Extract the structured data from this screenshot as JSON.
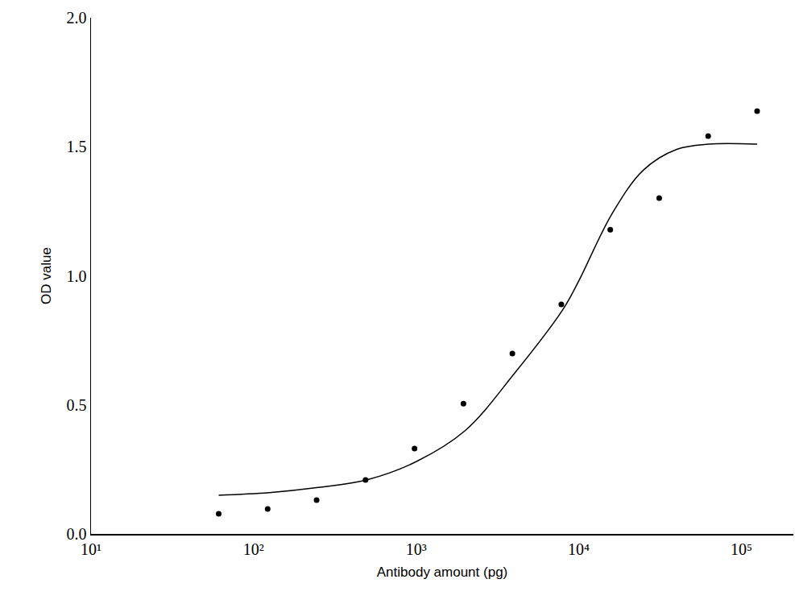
{
  "chart_data": {
    "type": "scatter",
    "x_label": "Antibody amount (pg)",
    "y_label": "OD value",
    "log": "x",
    "grid": false,
    "xlim": [
      10,
      209000
    ],
    "xticks": [
      {
        "value": 10,
        "label": "10¹"
      },
      {
        "value": 100,
        "label": "10²"
      },
      {
        "value": 1000,
        "label": "10³"
      },
      {
        "value": 10000,
        "label": "10⁴"
      },
      {
        "value": 100000,
        "label": "10⁵"
      }
    ],
    "ylim": [
      0,
      2
    ],
    "yticks": [
      {
        "value": 0,
        "label": "0.0"
      },
      {
        "value": 0.5,
        "label": "0.5"
      },
      {
        "value": 1,
        "label": "1.0"
      },
      {
        "value": 1.5,
        "label": "1.5"
      },
      {
        "value": 2,
        "label": "2.0"
      }
    ],
    "series": [
      {
        "type": "scatter",
        "marker": "circle",
        "color": "#000000",
        "x": [
          61,
          122,
          244,
          488,
          977,
          1953,
          3906,
          7813,
          15625,
          31250,
          62500,
          125000
        ],
        "values": [
          0.078,
          0.097,
          0.131,
          0.209,
          0.331,
          0.505,
          0.699,
          0.889,
          1.179,
          1.301,
          1.541,
          1.638
        ]
      },
      {
        "type": "line",
        "line_style": "solid",
        "color": "#000000",
        "x": [
          61,
          125,
          250,
          500,
          1000,
          2000,
          4000,
          8000,
          10000,
          16000,
          25000,
          40000,
          62500,
          125000
        ],
        "values": [
          0.15,
          0.16,
          0.18,
          0.21,
          0.28,
          0.4,
          0.62,
          0.87,
          0.98,
          1.24,
          1.41,
          1.49,
          1.51,
          1.51
        ]
      }
    ]
  }
}
